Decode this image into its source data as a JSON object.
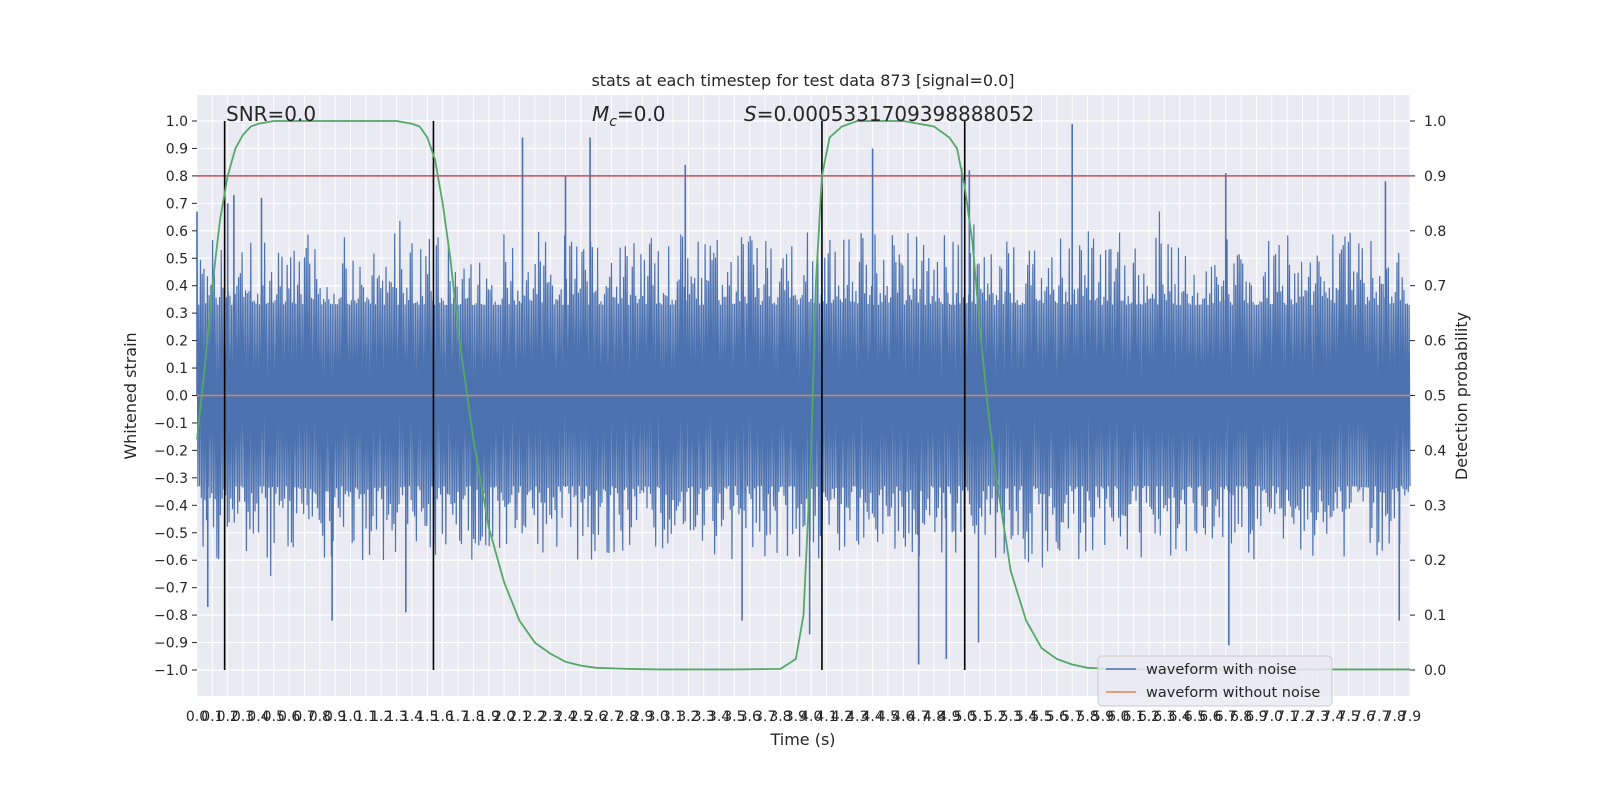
{
  "chart_data": {
    "type": "line",
    "title": "stats at each timestep for test data 873 [signal=0.0]",
    "xlabel": "Time (s)",
    "ylabel": "Whitened strain",
    "ylabel_right": "Detection probability",
    "xlim": [
      0.0,
      7.9
    ],
    "ylim": [
      -1.0,
      1.0
    ],
    "ylim_right": [
      0.0,
      1.0
    ],
    "x_tick_step": 0.1,
    "y_ticks": [
      1.0,
      0.9,
      0.8,
      0.7,
      0.6,
      0.5,
      0.4,
      0.3,
      0.2,
      0.1,
      0.0,
      -0.1,
      -0.2,
      -0.3,
      -0.4,
      -0.5,
      -0.6,
      -0.7,
      -0.8,
      -0.9,
      -1.0
    ],
    "y_ticks_right": [
      1.0,
      0.9,
      0.8,
      0.7,
      0.6,
      0.5,
      0.4,
      0.3,
      0.2,
      0.1,
      0.0
    ],
    "grid": true,
    "legend_position": "lower right",
    "annotations": [
      {
        "text": "SNR=0.0"
      },
      {
        "text": "Mc=0.0",
        "math_symbol": "M",
        "math_sub": "c",
        "rest": "=0.0"
      },
      {
        "text": "S=0.0005331709398888052",
        "math_symbol": "S",
        "rest": "=0.0005331709398888052"
      }
    ],
    "threshold_line": {
      "y_right": 0.9,
      "color": "#c44e52"
    },
    "vertical_markers_x": [
      0.18,
      1.54,
      4.07,
      5.0
    ],
    "series": [
      {
        "name": "waveform with noise",
        "color": "#4c72b0",
        "style": "noise",
        "peaks_positive": [
          {
            "x": 0.0,
            "y": 0.67
          },
          {
            "x": 0.2,
            "y": 0.7
          },
          {
            "x": 0.24,
            "y": 0.73
          },
          {
            "x": 0.42,
            "y": 0.72
          },
          {
            "x": 2.12,
            "y": 0.94
          },
          {
            "x": 2.4,
            "y": 0.8
          },
          {
            "x": 2.56,
            "y": 0.94
          },
          {
            "x": 3.18,
            "y": 0.84
          },
          {
            "x": 4.4,
            "y": 0.9
          },
          {
            "x": 4.98,
            "y": 0.83
          },
          {
            "x": 5.03,
            "y": 0.82
          },
          {
            "x": 5.7,
            "y": 0.99
          },
          {
            "x": 6.7,
            "y": 0.81
          },
          {
            "x": 7.74,
            "y": 0.78
          }
        ],
        "peaks_negative": [
          {
            "x": 0.07,
            "y": -0.77
          },
          {
            "x": 0.88,
            "y": -0.82
          },
          {
            "x": 1.36,
            "y": -0.79
          },
          {
            "x": 3.55,
            "y": -0.82
          },
          {
            "x": 3.99,
            "y": -0.87
          },
          {
            "x": 4.7,
            "y": -0.98
          },
          {
            "x": 4.88,
            "y": -0.96
          },
          {
            "x": 5.09,
            "y": -0.9
          },
          {
            "x": 6.72,
            "y": -0.91
          },
          {
            "x": 7.83,
            "y": -0.82
          }
        ],
        "typical_envelope": [
          -0.6,
          0.6
        ]
      },
      {
        "name": "waveform without noise",
        "color": "#dd8452",
        "x": [
          0.0,
          7.9
        ],
        "y": [
          0.0,
          0.0
        ]
      },
      {
        "name": "Detection probability",
        "axis": "right",
        "color": "#55a868",
        "x": [
          0.0,
          0.05,
          0.1,
          0.15,
          0.2,
          0.25,
          0.3,
          0.35,
          0.4,
          0.5,
          0.6,
          0.8,
          1.0,
          1.2,
          1.3,
          1.4,
          1.45,
          1.5,
          1.55,
          1.6,
          1.65,
          1.7,
          1.8,
          1.9,
          2.0,
          2.1,
          2.2,
          2.3,
          2.4,
          2.5,
          2.6,
          2.8,
          3.0,
          3.5,
          3.8,
          3.9,
          3.95,
          4.0,
          4.03,
          4.07,
          4.12,
          4.2,
          4.3,
          4.4,
          4.6,
          4.8,
          4.9,
          4.95,
          5.0,
          5.05,
          5.1,
          5.15,
          5.2,
          5.3,
          5.4,
          5.5,
          5.6,
          5.7,
          5.8,
          6.0,
          7.0,
          7.9
        ],
        "y": [
          0.42,
          0.55,
          0.7,
          0.82,
          0.9,
          0.95,
          0.975,
          0.99,
          0.995,
          1.0,
          1.0,
          1.0,
          1.0,
          1.0,
          1.0,
          0.995,
          0.99,
          0.97,
          0.93,
          0.85,
          0.75,
          0.62,
          0.42,
          0.26,
          0.16,
          0.09,
          0.05,
          0.03,
          0.015,
          0.008,
          0.004,
          0.002,
          0.001,
          0.001,
          0.002,
          0.02,
          0.1,
          0.4,
          0.7,
          0.9,
          0.97,
          0.99,
          1.0,
          1.0,
          1.0,
          0.99,
          0.97,
          0.95,
          0.88,
          0.78,
          0.62,
          0.48,
          0.36,
          0.18,
          0.09,
          0.04,
          0.02,
          0.01,
          0.004,
          0.001,
          0.001,
          0.001
        ]
      }
    ]
  }
}
